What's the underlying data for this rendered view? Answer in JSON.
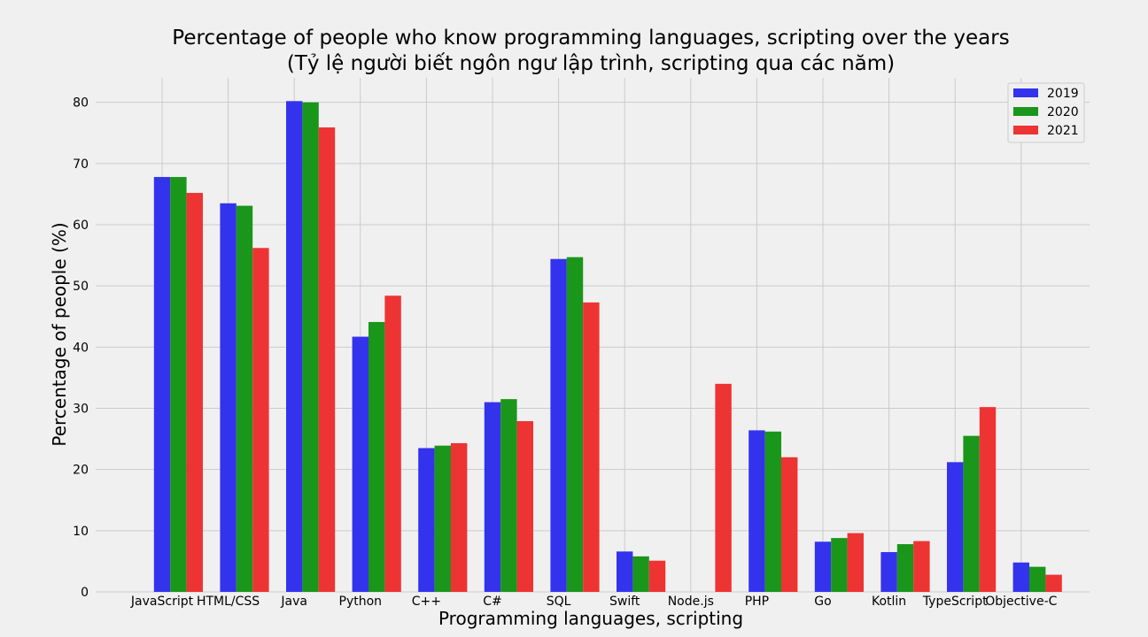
{
  "chart_data": {
    "type": "bar",
    "title": "Percentage of people who know programming languages, scripting over the years",
    "subtitle": "(Tỷ lệ người biết ngôn ngư lập trình, scripting qua các năm)",
    "xlabel": "Programming languages, scripting",
    "ylabel": "Percentage of people (%)",
    "categories": [
      "JavaScript",
      "HTML/CSS",
      "Java",
      "Python",
      "C++",
      "C#",
      "SQL",
      "Swift",
      "Node.js",
      "PHP",
      "Go",
      "Kotlin",
      "TypeScript",
      "Objective-C"
    ],
    "series": [
      {
        "name": "2019",
        "color": "#3333ee",
        "values": [
          67.8,
          63.5,
          80.2,
          41.7,
          23.5,
          31.0,
          54.4,
          6.6,
          0,
          26.4,
          8.2,
          6.5,
          21.2,
          4.8
        ]
      },
      {
        "name": "2020",
        "color": "#1a961a",
        "values": [
          67.8,
          63.1,
          80.0,
          44.1,
          23.9,
          31.5,
          54.7,
          5.8,
          0,
          26.2,
          8.8,
          7.8,
          25.5,
          4.1
        ]
      },
      {
        "name": "2021",
        "color": "#ee3333",
        "values": [
          65.2,
          56.2,
          75.9,
          48.4,
          24.3,
          27.9,
          47.3,
          5.1,
          34.0,
          22.0,
          9.6,
          8.3,
          30.2,
          2.8
        ]
      }
    ],
    "ylim": [
      0,
      84
    ],
    "yticks": [
      0,
      10,
      20,
      30,
      40,
      50,
      60,
      70,
      80
    ],
    "grid": true,
    "legend_position": "top-right"
  }
}
